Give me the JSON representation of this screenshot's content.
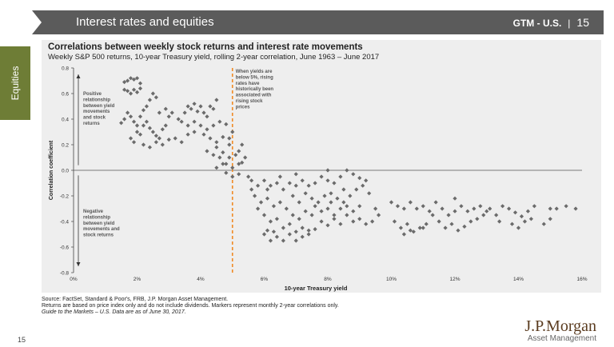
{
  "header": {
    "title": "Interest rates and equities",
    "section": "GTM - U.S.",
    "separator": "|",
    "page": "15"
  },
  "side_tab": {
    "label": "Equities"
  },
  "footnotes": {
    "source": "Source: FactSet, Standard & Poor's, FRB, J.P. Morgan Asset Management.",
    "note": "Returns are based on price index only and do not include dividends. Markers represent monthly 2-year correlations only.",
    "guide": "Guide to the Markets – U.S. Data are as of June 30, 2017."
  },
  "page_number": "15",
  "logo": {
    "brand": "J.P.Morgan",
    "tagline": "Asset Management"
  },
  "colors": {
    "marker": "#6b6b6b",
    "threshold": "#f08a24",
    "header_bg": "#5b5b5b",
    "side_tab": "#6e7d36"
  },
  "chart_data": {
    "type": "scatter",
    "title": "Correlations between weekly stock returns and interest rate movements",
    "subtitle": "Weekly S&P 500 returns, 10-year Treasury yield, rolling 2-year correlation, June 1963 – June 2017",
    "xlabel": "10-year Treasury yield",
    "ylabel": "Correlation coefficient",
    "xlim": [
      0,
      16
    ],
    "ylim": [
      -0.8,
      0.8
    ],
    "x_ticks": [
      "0%",
      "2%",
      "4%",
      "6%",
      "8%",
      "10%",
      "12%",
      "14%",
      "16%"
    ],
    "y_ticks": [
      "0.8",
      "0.6",
      "0.4",
      "0.2",
      "0.0",
      "-0.2",
      "-0.4",
      "-0.6",
      "-0.8"
    ],
    "threshold_x": 5,
    "annotations": {
      "threshold": [
        "When yields are",
        "below 5%, rising",
        "rates have",
        "historically been",
        "associated with",
        "rising stock",
        "prices"
      ],
      "positive": [
        "Positive",
        "relationship",
        "between yield",
        "movements",
        "and stock",
        "returns"
      ],
      "negative": [
        "Negative",
        "relationship",
        "between yield",
        "movements and",
        "stock returns"
      ]
    },
    "series": [
      {
        "points": [
          [
            1.6,
            0.69
          ],
          [
            1.7,
            0.7
          ],
          [
            1.8,
            0.72
          ],
          [
            1.9,
            0.71
          ],
          [
            2.0,
            0.72
          ],
          [
            2.1,
            0.68
          ],
          [
            1.6,
            0.63
          ],
          [
            1.7,
            0.62
          ],
          [
            1.8,
            0.6
          ],
          [
            1.9,
            0.63
          ],
          [
            2.0,
            0.61
          ],
          [
            2.1,
            0.64
          ],
          [
            1.5,
            0.37
          ],
          [
            1.6,
            0.4
          ],
          [
            1.7,
            0.45
          ],
          [
            1.8,
            0.42
          ],
          [
            1.9,
            0.38
          ],
          [
            2.0,
            0.35
          ],
          [
            2.1,
            0.42
          ],
          [
            2.2,
            0.47
          ],
          [
            2.3,
            0.5
          ],
          [
            2.4,
            0.55
          ],
          [
            2.5,
            0.6
          ],
          [
            2.6,
            0.57
          ],
          [
            1.8,
            0.25
          ],
          [
            1.9,
            0.22
          ],
          [
            2.0,
            0.3
          ],
          [
            2.1,
            0.28
          ],
          [
            2.2,
            0.35
          ],
          [
            2.3,
            0.38
          ],
          [
            2.4,
            0.33
          ],
          [
            2.5,
            0.3
          ],
          [
            2.6,
            0.27
          ],
          [
            2.7,
            0.25
          ],
          [
            2.8,
            0.32
          ],
          [
            2.9,
            0.35
          ],
          [
            2.2,
            0.2
          ],
          [
            2.4,
            0.18
          ],
          [
            2.6,
            0.22
          ],
          [
            2.8,
            0.2
          ],
          [
            3.0,
            0.24
          ],
          [
            3.2,
            0.25
          ],
          [
            3.4,
            0.22
          ],
          [
            3.6,
            0.28
          ],
          [
            3.8,
            0.3
          ],
          [
            2.7,
            0.45
          ],
          [
            2.9,
            0.48
          ],
          [
            3.0,
            0.42
          ],
          [
            3.1,
            0.45
          ],
          [
            3.3,
            0.4
          ],
          [
            3.4,
            0.38
          ],
          [
            3.5,
            0.45
          ],
          [
            3.6,
            0.5
          ],
          [
            3.7,
            0.48
          ],
          [
            3.8,
            0.52
          ],
          [
            3.9,
            0.46
          ],
          [
            4.0,
            0.5
          ],
          [
            4.1,
            0.45
          ],
          [
            4.2,
            0.42
          ],
          [
            4.3,
            0.5
          ],
          [
            4.4,
            0.48
          ],
          [
            4.5,
            0.55
          ],
          [
            3.6,
            0.35
          ],
          [
            3.8,
            0.38
          ],
          [
            4.0,
            0.35
          ],
          [
            4.2,
            0.32
          ],
          [
            4.4,
            0.35
          ],
          [
            4.6,
            0.38
          ],
          [
            4.8,
            0.36
          ],
          [
            4.1,
            0.28
          ],
          [
            4.3,
            0.25
          ],
          [
            4.5,
            0.22
          ],
          [
            4.7,
            0.26
          ],
          [
            4.9,
            0.2
          ],
          [
            4.2,
            0.15
          ],
          [
            4.4,
            0.12
          ],
          [
            4.6,
            0.1
          ],
          [
            4.8,
            0.05
          ],
          [
            4.5,
            0.18
          ],
          [
            4.7,
            0.14
          ],
          [
            4.9,
            0.1
          ],
          [
            5.0,
            0.02
          ],
          [
            5.2,
            0.05
          ],
          [
            5.1,
            0.12
          ],
          [
            4.8,
            -0.02
          ],
          [
            5.0,
            -0.05
          ],
          [
            5.2,
            -0.03
          ],
          [
            5.3,
            0.06
          ],
          [
            4.9,
            0.25
          ],
          [
            5.0,
            0.3
          ],
          [
            5.2,
            0.15
          ],
          [
            5.3,
            0.2
          ],
          [
            5.5,
            -0.05
          ],
          [
            5.4,
            0.1
          ],
          [
            4.5,
            0.02
          ],
          [
            4.7,
            0.05
          ],
          [
            5.6,
            -0.08
          ],
          [
            5.8,
            -0.12
          ],
          [
            6.0,
            -0.08
          ],
          [
            6.2,
            -0.12
          ],
          [
            6.4,
            -0.1
          ],
          [
            6.6,
            -0.15
          ],
          [
            6.8,
            -0.1
          ],
          [
            7.0,
            -0.12
          ],
          [
            7.2,
            -0.08
          ],
          [
            7.4,
            -0.12
          ],
          [
            7.6,
            -0.1
          ],
          [
            7.8,
            -0.05
          ],
          [
            8.0,
            -0.08
          ],
          [
            8.2,
            -0.1
          ],
          [
            8.4,
            -0.05
          ],
          [
            8.6,
            0.0
          ],
          [
            8.8,
            -0.03
          ],
          [
            9.0,
            -0.06
          ],
          [
            9.2,
            -0.08
          ],
          [
            8.0,
            0.0
          ],
          [
            7.0,
            -0.03
          ],
          [
            6.5,
            -0.05
          ],
          [
            5.7,
            -0.2
          ],
          [
            5.9,
            -0.25
          ],
          [
            6.1,
            -0.22
          ],
          [
            6.3,
            -0.28
          ],
          [
            6.5,
            -0.25
          ],
          [
            6.7,
            -0.3
          ],
          [
            6.9,
            -0.2
          ],
          [
            7.1,
            -0.25
          ],
          [
            7.3,
            -0.18
          ],
          [
            7.5,
            -0.22
          ],
          [
            7.7,
            -0.25
          ],
          [
            7.9,
            -0.2
          ],
          [
            8.1,
            -0.18
          ],
          [
            8.3,
            -0.22
          ],
          [
            8.5,
            -0.15
          ],
          [
            8.7,
            -0.2
          ],
          [
            8.9,
            -0.15
          ],
          [
            9.1,
            -0.12
          ],
          [
            9.3,
            -0.18
          ],
          [
            6.0,
            -0.35
          ],
          [
            6.2,
            -0.4
          ],
          [
            6.4,
            -0.38
          ],
          [
            6.6,
            -0.45
          ],
          [
            6.8,
            -0.42
          ],
          [
            7.0,
            -0.48
          ],
          [
            7.2,
            -0.45
          ],
          [
            7.4,
            -0.5
          ],
          [
            7.6,
            -0.46
          ],
          [
            7.8,
            -0.4
          ],
          [
            8.0,
            -0.43
          ],
          [
            8.2,
            -0.38
          ],
          [
            8.4,
            -0.42
          ],
          [
            8.6,
            -0.35
          ],
          [
            8.8,
            -0.4
          ],
          [
            9.0,
            -0.38
          ],
          [
            9.2,
            -0.42
          ],
          [
            9.4,
            -0.4
          ],
          [
            6.0,
            -0.5
          ],
          [
            6.2,
            -0.55
          ],
          [
            6.4,
            -0.52
          ],
          [
            6.6,
            -0.55
          ],
          [
            6.8,
            -0.5
          ],
          [
            7.0,
            -0.55
          ],
          [
            7.2,
            -0.52
          ],
          [
            7.4,
            -0.47
          ],
          [
            6.1,
            -0.47
          ],
          [
            6.3,
            -0.48
          ],
          [
            7.6,
            -0.28
          ],
          [
            7.8,
            -0.32
          ],
          [
            8.0,
            -0.3
          ],
          [
            8.2,
            -0.35
          ],
          [
            8.4,
            -0.3
          ],
          [
            8.6,
            -0.28
          ],
          [
            8.8,
            -0.32
          ],
          [
            9.0,
            -0.28
          ],
          [
            7.5,
            -0.35
          ],
          [
            8.1,
            -0.25
          ],
          [
            8.5,
            -0.25
          ],
          [
            5.8,
            -0.3
          ],
          [
            5.6,
            -0.15
          ],
          [
            6.1,
            -0.15
          ],
          [
            6.9,
            -0.35
          ],
          [
            7.1,
            -0.38
          ],
          [
            7.3,
            -0.32
          ],
          [
            9.5,
            -0.3
          ],
          [
            9.6,
            -0.35
          ],
          [
            10.0,
            -0.25
          ],
          [
            10.2,
            -0.28
          ],
          [
            10.4,
            -0.3
          ],
          [
            10.6,
            -0.25
          ],
          [
            10.8,
            -0.3
          ],
          [
            11.0,
            -0.28
          ],
          [
            11.2,
            -0.32
          ],
          [
            10.1,
            -0.4
          ],
          [
            10.3,
            -0.45
          ],
          [
            10.5,
            -0.42
          ],
          [
            10.7,
            -0.48
          ],
          [
            10.9,
            -0.45
          ],
          [
            11.1,
            -0.42
          ],
          [
            10.4,
            -0.5
          ],
          [
            10.6,
            -0.47
          ],
          [
            11.6,
            -0.3
          ],
          [
            11.8,
            -0.35
          ],
          [
            12.0,
            -0.32
          ],
          [
            12.2,
            -0.28
          ],
          [
            11.5,
            -0.4
          ],
          [
            11.7,
            -0.45
          ],
          [
            11.9,
            -0.42
          ],
          [
            12.1,
            -0.47
          ],
          [
            12.3,
            -0.44
          ],
          [
            12.5,
            -0.4
          ],
          [
            12.7,
            -0.38
          ],
          [
            12.9,
            -0.35
          ],
          [
            13.1,
            -0.3
          ],
          [
            12.6,
            -0.3
          ],
          [
            12.8,
            -0.28
          ],
          [
            13.0,
            -0.32
          ],
          [
            13.3,
            -0.35
          ],
          [
            13.5,
            -0.28
          ],
          [
            13.7,
            -0.3
          ],
          [
            13.9,
            -0.33
          ],
          [
            14.1,
            -0.36
          ],
          [
            14.3,
            -0.32
          ],
          [
            14.5,
            -0.28
          ],
          [
            13.8,
            -0.42
          ],
          [
            14.0,
            -0.45
          ],
          [
            14.2,
            -0.4
          ],
          [
            14.4,
            -0.38
          ],
          [
            13.4,
            -0.4
          ],
          [
            12.4,
            -0.32
          ],
          [
            15.0,
            -0.3
          ],
          [
            15.2,
            -0.3
          ],
          [
            15.5,
            -0.28
          ],
          [
            15.8,
            -0.3
          ],
          [
            14.8,
            -0.42
          ],
          [
            15.0,
            -0.38
          ],
          [
            11.3,
            -0.35
          ],
          [
            11.0,
            -0.45
          ],
          [
            12.0,
            -0.22
          ],
          [
            11.4,
            -0.25
          ]
        ]
      }
    ]
  }
}
